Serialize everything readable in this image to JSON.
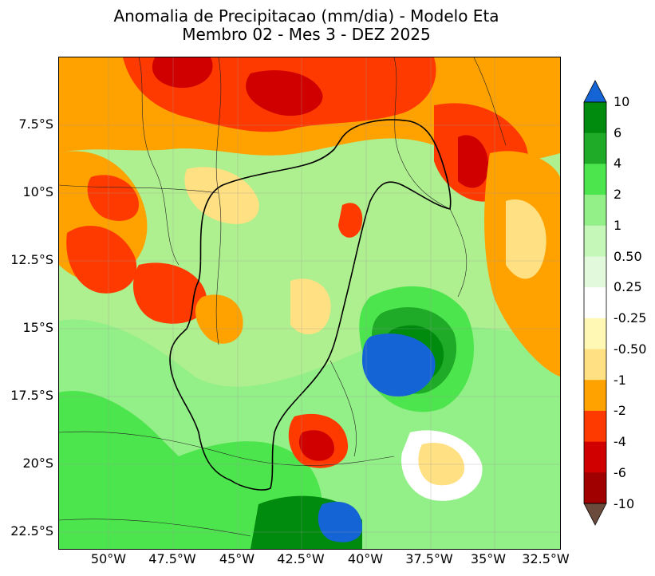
{
  "title": {
    "line1": "Anomalia de Precipitacao (mm/dia) - Modelo Eta",
    "line2": "Membro 02 - Mes 3 - DEZ 2025"
  },
  "axes": {
    "lat_labels": [
      "7.5°S",
      "10°S",
      "12.5°S",
      "15°S",
      "17.5°S",
      "20°S",
      "22.5°S"
    ],
    "lat_values": [
      -7.5,
      -10,
      -12.5,
      -15,
      -17.5,
      -20,
      -22.5
    ],
    "lon_labels": [
      "50°W",
      "47.5°W",
      "45°W",
      "42.5°W",
      "40°W",
      "37.5°W",
      "35°W",
      "32.5°W"
    ],
    "lon_values": [
      -50,
      -47.5,
      -45,
      -42.5,
      -40,
      -37.5,
      -35,
      -32.5
    ],
    "lon_range": [
      -52,
      -32.5
    ],
    "lat_range": [
      -22.8,
      -5.0
    ]
  },
  "colorbar": {
    "tick_labels": [
      "10",
      "6",
      "4",
      "2",
      "1",
      "0.50",
      "0.25",
      "-0.25",
      "-0.50",
      "-1",
      "-2",
      "-4",
      "-6",
      "-10"
    ],
    "segment_colors": [
      "#008a0e",
      "#1faa28",
      "#4de54d",
      "#93ef87",
      "#c5f7b8",
      "#e2fadb",
      "#ffffff",
      "#fff8b5",
      "#ffe082",
      "#ffa200",
      "#ff3a00",
      "#d00000",
      "#a00000"
    ],
    "over_color": "#1464d6",
    "under_color": "#6b4b3c"
  }
}
